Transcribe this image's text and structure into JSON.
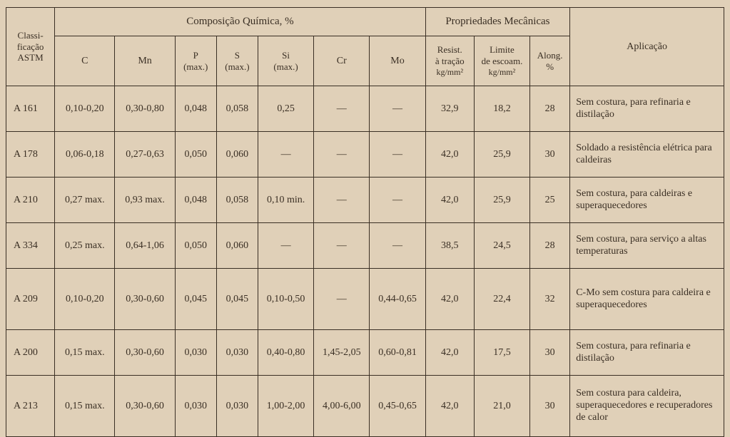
{
  "headers": {
    "astm_l1": "Classi-",
    "astm_l2": "ficação",
    "astm_l3": "ASTM",
    "chem": "Composição Química, %",
    "mech": "Propriedades Mecânicas",
    "apl": "Aplicação",
    "C": "C",
    "Mn": "Mn",
    "P1": "P",
    "P2": "(max.)",
    "S1": "S",
    "S2": "(max.)",
    "Si1": "Si",
    "Si2": "(max.)",
    "Cr": "Cr",
    "Mo": "Mo",
    "rt1": "Resist.",
    "rt2": "à tração",
    "rt3": "kg/mm²",
    "le1": "Limite",
    "le2": "de escoam.",
    "le3": "kg/mm²",
    "al1": "Along.",
    "al2": "%"
  },
  "rows": [
    {
      "astm": "A  161",
      "C": "0,10-0,20",
      "Mn": "0,30-0,80",
      "P": "0,048",
      "S": "0,058",
      "Si": "0,25",
      "Cr": "—",
      "Mo": "—",
      "rt": "32,9",
      "le": "18,2",
      "al": "28",
      "apl": "Sem costura, para refi­naria e distilação"
    },
    {
      "astm": "A  178",
      "C": "0,06-0,18",
      "Mn": "0,27-0,63",
      "P": "0,050",
      "S": "0,060",
      "Si": "—",
      "Cr": "—",
      "Mo": "—",
      "rt": "42,0",
      "le": "25,9",
      "al": "30",
      "apl": "Soldado a resistência elé­trica para caldeiras"
    },
    {
      "astm": "A  210",
      "C": "0,27 max.",
      "Mn": "0,93 max.",
      "P": "0,048",
      "S": "0,058",
      "Si": "0,10 min.",
      "Cr": "—",
      "Mo": "—",
      "rt": "42,0",
      "le": "25,9",
      "al": "25",
      "apl": "Sem costura, para caldei­ras e superaquecedores"
    },
    {
      "astm": "A  334",
      "C": "0,25 max.",
      "Mn": "0,64-1,06",
      "P": "0,050",
      "S": "0,060",
      "Si": "—",
      "Cr": "—",
      "Mo": "—",
      "rt": "38,5",
      "le": "24,5",
      "al": "28",
      "apl": "Sem costura, para serviço a altas temperaturas"
    },
    {
      "astm": "A  209",
      "C": "0,10-0,20",
      "Mn": "0,30-0,60",
      "P": "0,045",
      "S": "0,045",
      "Si": "0,10-0,50",
      "Cr": "—",
      "Mo": "0,44-0,65",
      "rt": "42,0",
      "le": "22,4",
      "al": "32",
      "apl": "C-Mo sem costura para caldeira e superaquece­dores"
    },
    {
      "astm": "A  200",
      "C": "0,15 max.",
      "Mn": "0,30-0,60",
      "P": "0,030",
      "S": "0,030",
      "Si": "0,40-0,80",
      "Cr": "1,45-2,05",
      "Mo": "0,60-0,81",
      "rt": "42,0",
      "le": "17,5",
      "al": "30",
      "apl": "Sem costura, para refi­naria e distilação"
    },
    {
      "astm": "A  213",
      "C": "0,15 max.",
      "Mn": "0,30-0,60",
      "P": "0,030",
      "S": "0,030",
      "Si": "1,00-2,00",
      "Cr": "4,00-6,00",
      "Mo": "0,45-0,65",
      "rt": "42,0",
      "le": "21,0",
      "al": "30",
      "apl": "Sem costura para caldei­ra, superaquecedores e re­cuperadores de calor"
    }
  ]
}
